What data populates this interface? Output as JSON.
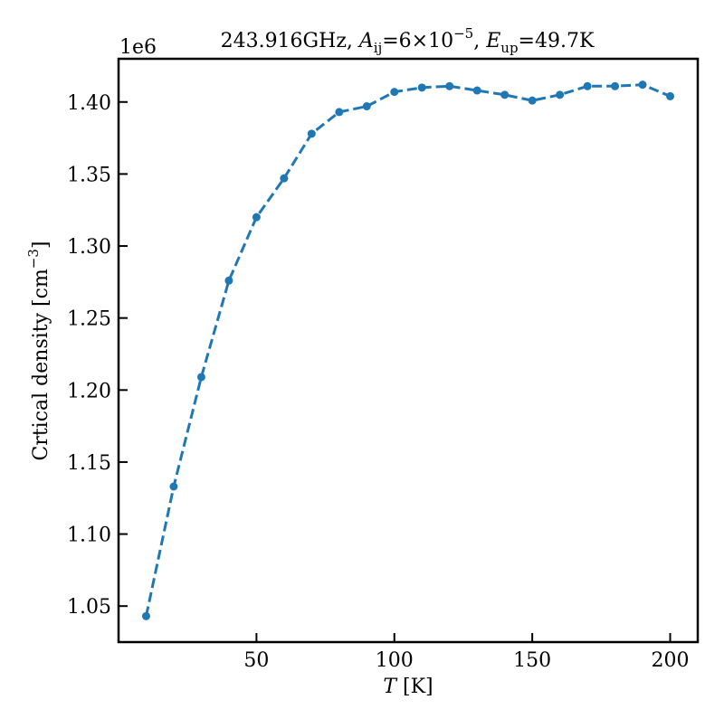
{
  "chart_data": {
    "type": "line",
    "title": {
      "freq": "243.916GHz, ",
      "a_sym": "A",
      "a_sub": "ij",
      "a_val": "=6×10",
      "a_exp": "−5",
      "sep": ", ",
      "e_sym": "E",
      "e_sub": "up",
      "e_val": "=49.7K"
    },
    "xlabel": {
      "sym": "T",
      "unit": " [K]"
    },
    "ylabel": {
      "text": "Crtical density [cm",
      "exp": "−3",
      "close": "]"
    },
    "y_offset_label": "1e6",
    "xlim": [
      0,
      210
    ],
    "ylim": [
      1.025,
      1.43
    ],
    "x_ticks": [
      50,
      100,
      150,
      200
    ],
    "y_ticks": [
      1.05,
      1.1,
      1.15,
      1.2,
      1.25,
      1.3,
      1.35,
      1.4
    ],
    "x_tick_labels": [
      "50",
      "100",
      "150",
      "200"
    ],
    "y_tick_labels": [
      "1.05",
      "1.10",
      "1.15",
      "1.20",
      "1.25",
      "1.30",
      "1.35",
      "1.40"
    ],
    "grid": false,
    "series": [
      {
        "color": "#1f77b4",
        "line_style": "dashed",
        "marker": "circle",
        "x": [
          10,
          20,
          30,
          40,
          50,
          60,
          70,
          80,
          90,
          100,
          110,
          120,
          130,
          140,
          150,
          160,
          170,
          180,
          190,
          200
        ],
        "y": [
          1.043,
          1.133,
          1.209,
          1.276,
          1.32,
          1.347,
          1.378,
          1.393,
          1.397,
          1.407,
          1.41,
          1.411,
          1.408,
          1.405,
          1.401,
          1.405,
          1.411,
          1.411,
          1.412,
          1.404
        ]
      }
    ]
  }
}
